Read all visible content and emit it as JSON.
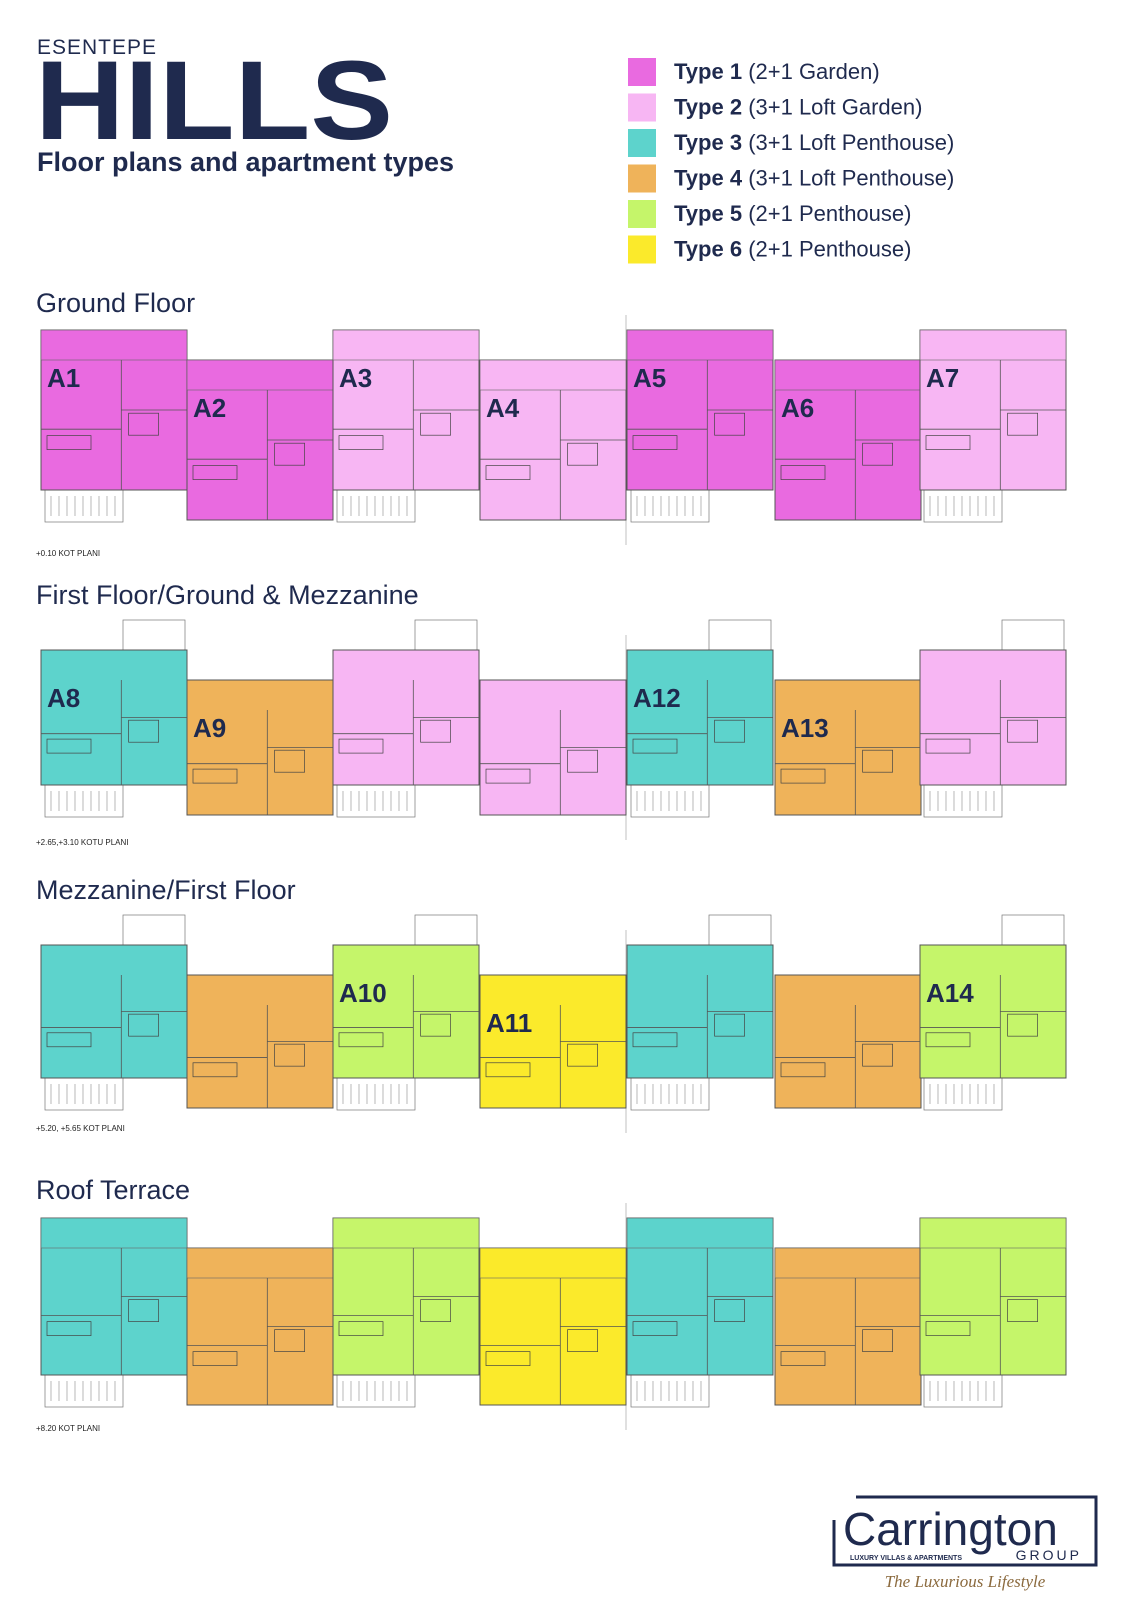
{
  "header": {
    "kicker": "ESENTEPE",
    "title": "HILLS",
    "subtitle": "Floor plans and apartment types"
  },
  "legend": [
    {
      "type": "Type 1",
      "description": "(2+1 Garden)",
      "color": "#e96ae0"
    },
    {
      "type": "Type 2",
      "description": "(3+1 Loft Garden)",
      "color": "#f7b6f3"
    },
    {
      "type": "Type 3",
      "description": "(3+1 Loft Penthouse)",
      "color": "#5dd3cc"
    },
    {
      "type": "Type 4",
      "description": "(3+1 Loft Penthouse)",
      "color": "#efb35a"
    },
    {
      "type": "Type 5",
      "description": "(2+1 Penthouse)",
      "color": "#c5f56a"
    },
    {
      "type": "Type 6",
      "description": "(2+1 Penthouse)",
      "color": "#fbea2b"
    }
  ],
  "floors": [
    {
      "title": "Ground Floor",
      "note": "+0.10 KOT PLANI",
      "units": [
        {
          "label": "A1",
          "color": "#e96ae0"
        },
        {
          "label": "A2",
          "color": "#e96ae0"
        },
        {
          "label": "A3",
          "color": "#f7b6f3"
        },
        {
          "label": "A4",
          "color": "#f7b6f3"
        },
        {
          "label": "A5",
          "color": "#e96ae0"
        },
        {
          "label": "A6",
          "color": "#e96ae0"
        },
        {
          "label": "A7",
          "color": "#f7b6f3"
        }
      ]
    },
    {
      "title": "First Floor/Ground & Mezzanine",
      "note": "+2.65,+3.10 KOTU PLANI",
      "units": [
        {
          "label": "A8",
          "color": "#5dd3cc"
        },
        {
          "label": "A9",
          "color": "#efb35a"
        },
        {
          "color": "#f7b6f3"
        },
        {
          "color": "#f7b6f3"
        },
        {
          "label": "A12",
          "color": "#5dd3cc"
        },
        {
          "label": "A13",
          "color": "#efb35a"
        },
        {
          "color": "#f7b6f3"
        }
      ]
    },
    {
      "title": "Mezzanine/First Floor",
      "note": "+5.20, +5.65 KOT PLANI",
      "units": [
        {
          "color": "#5dd3cc"
        },
        {
          "color": "#efb35a"
        },
        {
          "label": "A10",
          "color": "#c5f56a"
        },
        {
          "label": "A11",
          "color": "#fbea2b"
        },
        {
          "color": "#5dd3cc"
        },
        {
          "color": "#efb35a"
        },
        {
          "label": "A14",
          "color": "#c5f56a"
        }
      ]
    },
    {
      "title": "Roof Terrace",
      "note": "+8.20 KOT PLANI",
      "units": [
        {
          "color": "#5dd3cc"
        },
        {
          "color": "#efb35a"
        },
        {
          "color": "#c5f56a"
        },
        {
          "color": "#fbea2b"
        },
        {
          "color": "#5dd3cc"
        },
        {
          "color": "#efb35a"
        },
        {
          "color": "#c5f56a"
        }
      ]
    }
  ],
  "logo": {
    "name": "Carrington",
    "group": "GROUP",
    "tagline": "LUXURY VILLAS & APARTMENTS",
    "slogan": "The Luxurious Lifestyle"
  }
}
